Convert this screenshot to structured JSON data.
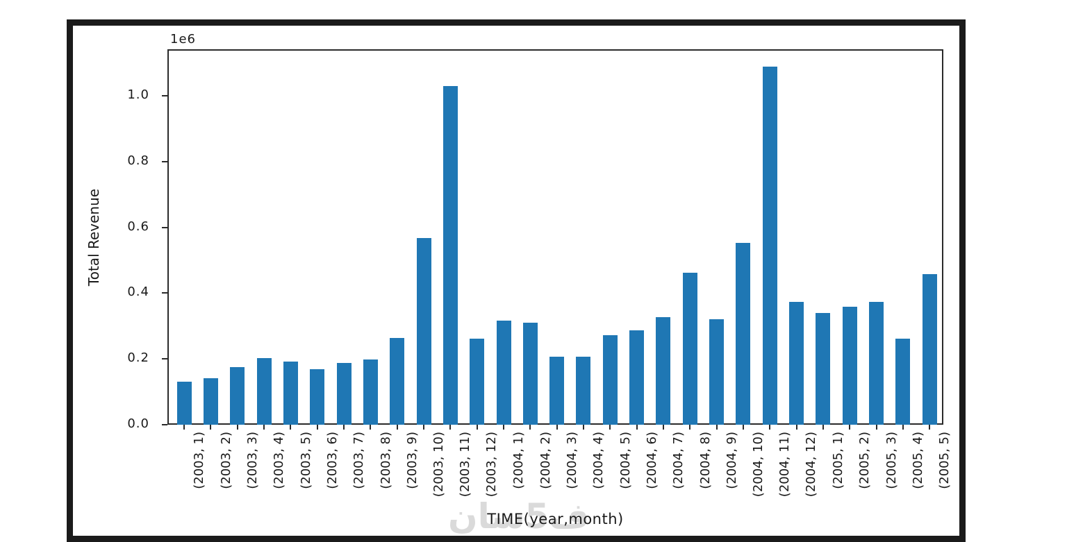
{
  "figure": {
    "background": "#ffffff",
    "frame_color": "#1b1b1b"
  },
  "chart_data": {
    "type": "bar",
    "title": "",
    "xlabel": "TIME(year,month)",
    "ylabel": "Total Revenue",
    "offset_text": "1e6",
    "categories": [
      "(2003, 1)",
      "(2003, 2)",
      "(2003, 3)",
      "(2003, 4)",
      "(2003, 5)",
      "(2003, 6)",
      "(2003, 7)",
      "(2003, 8)",
      "(2003, 9)",
      "(2003, 10)",
      "(2003, 11)",
      "(2003, 12)",
      "(2004, 1)",
      "(2004, 2)",
      "(2004, 3)",
      "(2004, 4)",
      "(2004, 5)",
      "(2004, 6)",
      "(2004, 7)",
      "(2004, 8)",
      "(2004, 9)",
      "(2004, 10)",
      "(2004, 11)",
      "(2004, 12)",
      "(2005, 1)",
      "(2005, 2)",
      "(2005, 3)",
      "(2005, 4)",
      "(2005, 5)"
    ],
    "values": [
      130000,
      141000,
      175000,
      202000,
      193000,
      168000,
      188000,
      198000,
      264000,
      568000,
      1030000,
      262000,
      317000,
      311000,
      206000,
      206000,
      273000,
      287000,
      327000,
      462000,
      321000,
      553000,
      1089000,
      373000,
      340000,
      358000,
      374000,
      262000,
      458000
    ],
    "ylim": [
      0,
      1141000
    ],
    "yticks": [
      0,
      200000,
      400000,
      600000,
      800000,
      1000000
    ],
    "ytick_labels": [
      "0.0",
      "0.2",
      "0.4",
      "0.6",
      "0.8",
      "1.0"
    ],
    "bar_color": "#1f77b4",
    "grid": false,
    "legend": "none"
  },
  "watermark": {
    "text": "ف5سان",
    "color": "#dadada"
  }
}
